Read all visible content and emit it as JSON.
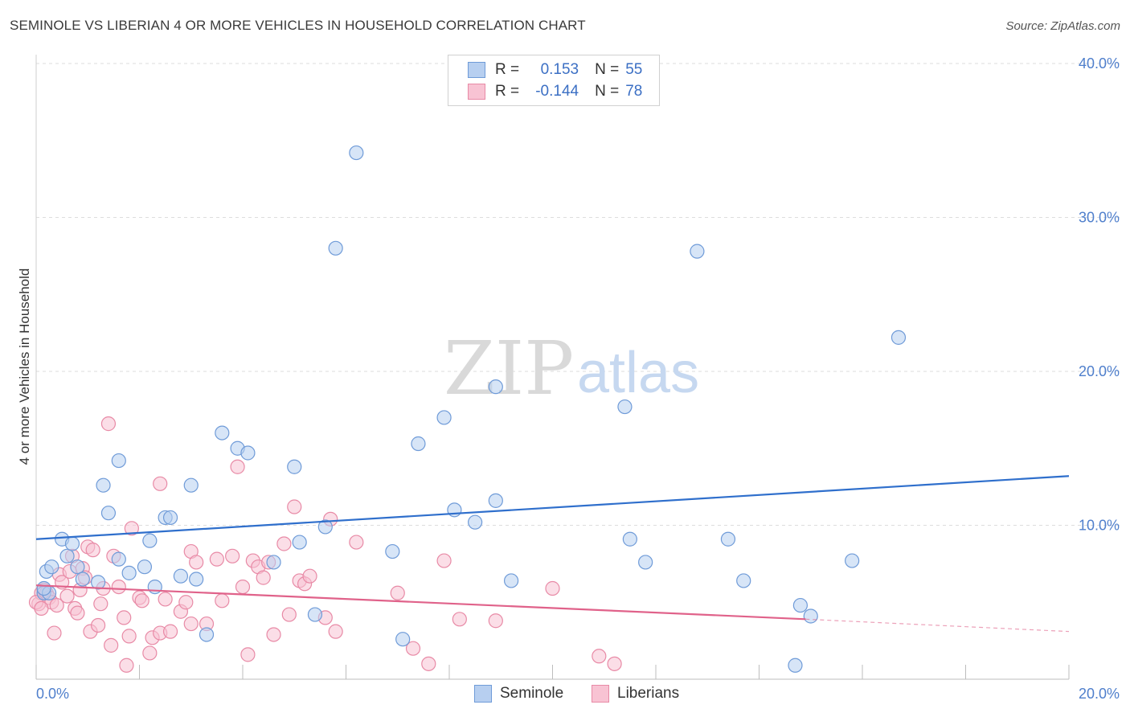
{
  "title": "SEMINOLE VS LIBERIAN 4 OR MORE VEHICLES IN HOUSEHOLD CORRELATION CHART",
  "source": "Source: ZipAtlas.com",
  "watermark": {
    "zip": "ZIP",
    "atlas": "atlas"
  },
  "legend": {
    "r_label": "R =",
    "n_label": "N =",
    "rows": [
      {
        "name": "Seminole",
        "r": "0.153",
        "n": "55"
      },
      {
        "name": "Liberians",
        "r": "-0.144",
        "n": "78"
      }
    ]
  },
  "colors": {
    "seminole_fill": "#b7cff0",
    "seminole_stroke": "#6f9bd8",
    "seminole_line": "#2f6fcc",
    "liberian_fill": "#f8c3d3",
    "liberian_stroke": "#e88aa6",
    "liberian_line": "#e0628a",
    "tick_text": "#4f7fcc",
    "grid": "#dddddd"
  },
  "chart_data": {
    "type": "scatter",
    "title": "SEMINOLE VS LIBERIAN 4 OR MORE VEHICLES IN HOUSEHOLD CORRELATION CHART",
    "xlabel": "",
    "ylabel": "4 or more Vehicles in Household",
    "xlim": [
      0,
      20
    ],
    "ylim": [
      0,
      40
    ],
    "x_tick_labels": [
      "0.0%",
      "20.0%"
    ],
    "y_ticks": [
      10,
      20,
      30,
      40
    ],
    "y_tick_labels": [
      "10.0%",
      "20.0%",
      "30.0%",
      "40.0%"
    ],
    "grid": "horizontal dashed",
    "legend_position": "top-center",
    "series": [
      {
        "name": "Seminole",
        "trend": {
          "x": [
            0,
            20
          ],
          "y": [
            9.1,
            13.2
          ],
          "dashed_after": null
        },
        "points": [
          [
            0.2,
            7.0
          ],
          [
            0.3,
            7.3
          ],
          [
            0.5,
            9.1
          ],
          [
            0.6,
            8.0
          ],
          [
            0.7,
            8.8
          ],
          [
            0.8,
            7.3
          ],
          [
            0.9,
            6.5
          ],
          [
            1.2,
            6.3
          ],
          [
            1.3,
            12.6
          ],
          [
            1.4,
            10.8
          ],
          [
            1.6,
            7.8
          ],
          [
            1.6,
            14.2
          ],
          [
            1.8,
            6.9
          ],
          [
            2.1,
            7.3
          ],
          [
            2.2,
            9.0
          ],
          [
            2.3,
            6.0
          ],
          [
            2.5,
            10.5
          ],
          [
            2.6,
            10.5
          ],
          [
            2.8,
            6.7
          ],
          [
            3.0,
            12.6
          ],
          [
            3.1,
            6.5
          ],
          [
            3.3,
            2.9
          ],
          [
            3.6,
            16.0
          ],
          [
            3.9,
            15.0
          ],
          [
            4.1,
            14.7
          ],
          [
            4.6,
            7.6
          ],
          [
            5.0,
            13.8
          ],
          [
            5.1,
            8.9
          ],
          [
            5.4,
            4.2
          ],
          [
            5.6,
            9.9
          ],
          [
            5.8,
            28.0
          ],
          [
            6.2,
            34.2
          ],
          [
            6.9,
            8.3
          ],
          [
            7.1,
            2.6
          ],
          [
            7.4,
            15.3
          ],
          [
            7.9,
            17.0
          ],
          [
            8.1,
            11.0
          ],
          [
            8.5,
            10.2
          ],
          [
            8.9,
            19.0
          ],
          [
            8.9,
            11.6
          ],
          [
            9.2,
            6.4
          ],
          [
            11.4,
            17.7
          ],
          [
            11.5,
            9.1
          ],
          [
            11.8,
            7.6
          ],
          [
            12.8,
            27.8
          ],
          [
            13.4,
            9.1
          ],
          [
            13.7,
            6.4
          ],
          [
            14.7,
            0.9
          ],
          [
            14.8,
            4.8
          ],
          [
            15.0,
            4.1
          ],
          [
            15.8,
            7.7
          ],
          [
            16.7,
            22.2
          ],
          [
            0.15,
            5.6
          ],
          [
            0.25,
            5.6
          ],
          [
            0.15,
            5.9
          ]
        ]
      },
      {
        "name": "Liberians",
        "trend": {
          "x": [
            0,
            14.9
          ],
          "y": [
            6.1,
            3.9
          ],
          "dashed_until": [
            20,
            3.1
          ]
        },
        "points": [
          [
            0.05,
            4.9
          ],
          [
            0.1,
            5.6
          ],
          [
            0.15,
            5.8
          ],
          [
            0.2,
            5.6
          ],
          [
            0.25,
            5.3
          ],
          [
            0.3,
            5.0
          ],
          [
            0.35,
            3.0
          ],
          [
            0.4,
            4.8
          ],
          [
            0.45,
            6.8
          ],
          [
            0.5,
            6.3
          ],
          [
            0.6,
            5.4
          ],
          [
            0.65,
            7.0
          ],
          [
            0.7,
            8.0
          ],
          [
            0.75,
            4.6
          ],
          [
            0.8,
            4.3
          ],
          [
            0.85,
            5.8
          ],
          [
            0.9,
            7.2
          ],
          [
            0.95,
            6.6
          ],
          [
            1.0,
            8.6
          ],
          [
            1.05,
            3.1
          ],
          [
            1.1,
            8.4
          ],
          [
            1.2,
            3.5
          ],
          [
            1.25,
            4.9
          ],
          [
            1.3,
            5.9
          ],
          [
            1.4,
            16.6
          ],
          [
            1.45,
            2.2
          ],
          [
            1.5,
            8.0
          ],
          [
            1.6,
            6.0
          ],
          [
            1.7,
            4.0
          ],
          [
            1.75,
            0.9
          ],
          [
            1.8,
            2.8
          ],
          [
            1.85,
            9.8
          ],
          [
            2.0,
            5.3
          ],
          [
            2.05,
            5.1
          ],
          [
            2.2,
            1.7
          ],
          [
            2.25,
            2.7
          ],
          [
            2.4,
            3.0
          ],
          [
            2.4,
            12.7
          ],
          [
            2.5,
            5.2
          ],
          [
            2.6,
            3.1
          ],
          [
            2.8,
            4.4
          ],
          [
            2.9,
            5.0
          ],
          [
            3.0,
            3.6
          ],
          [
            3.0,
            8.3
          ],
          [
            3.1,
            7.6
          ],
          [
            3.3,
            3.6
          ],
          [
            3.5,
            7.8
          ],
          [
            3.6,
            5.1
          ],
          [
            3.8,
            8.0
          ],
          [
            3.9,
            13.8
          ],
          [
            4.0,
            6.0
          ],
          [
            4.1,
            1.6
          ],
          [
            4.2,
            7.7
          ],
          [
            4.3,
            7.3
          ],
          [
            4.4,
            6.6
          ],
          [
            4.5,
            7.6
          ],
          [
            4.6,
            2.9
          ],
          [
            4.8,
            8.8
          ],
          [
            4.9,
            4.2
          ],
          [
            5.0,
            11.2
          ],
          [
            5.1,
            6.4
          ],
          [
            5.2,
            6.2
          ],
          [
            5.3,
            6.7
          ],
          [
            5.6,
            4.0
          ],
          [
            5.7,
            10.4
          ],
          [
            5.8,
            3.1
          ],
          [
            6.2,
            8.9
          ],
          [
            7.0,
            5.6
          ],
          [
            7.3,
            2.0
          ],
          [
            7.6,
            1.0
          ],
          [
            7.9,
            7.7
          ],
          [
            8.2,
            3.9
          ],
          [
            8.9,
            3.8
          ],
          [
            10.0,
            5.9
          ],
          [
            10.9,
            1.5
          ],
          [
            11.2,
            1.0
          ],
          [
            0.0,
            5.0
          ],
          [
            0.1,
            4.6
          ]
        ]
      }
    ]
  }
}
